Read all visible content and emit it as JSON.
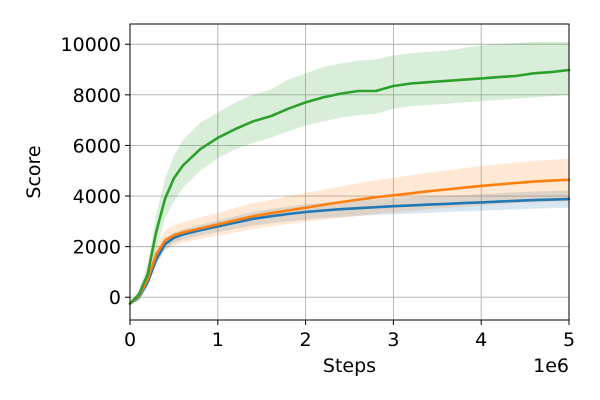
{
  "chart_data": {
    "type": "line",
    "xlabel": "Steps",
    "ylabel": "Score",
    "x_offset_label": "1e6",
    "xlim": [
      0,
      5000000
    ],
    "ylim": [
      -900,
      10800
    ],
    "x_ticks": [
      0,
      1000000,
      2000000,
      3000000,
      4000000,
      5000000
    ],
    "x_tick_labels": [
      "0",
      "1",
      "2",
      "3",
      "4",
      "5"
    ],
    "y_ticks": [
      0,
      2000,
      4000,
      6000,
      8000,
      10000
    ],
    "y_tick_labels": [
      "0",
      "2000",
      "4000",
      "6000",
      "8000",
      "10000"
    ],
    "grid": true,
    "x": [
      0,
      100000,
      200000,
      300000,
      400000,
      500000,
      600000,
      800000,
      1000000,
      1200000,
      1400000,
      1600000,
      1800000,
      2000000,
      2200000,
      2400000,
      2600000,
      2800000,
      3000000,
      3200000,
      3400000,
      3600000,
      3800000,
      4000000,
      4200000,
      4400000,
      4600000,
      4800000,
      5000000
    ],
    "series": [
      {
        "color": "#1f77b4",
        "values": [
          -250,
          0,
          600,
          1500,
          2100,
          2350,
          2480,
          2650,
          2800,
          2950,
          3100,
          3200,
          3290,
          3370,
          3430,
          3480,
          3520,
          3560,
          3600,
          3630,
          3660,
          3690,
          3720,
          3750,
          3780,
          3810,
          3840,
          3860,
          3880
        ],
        "lower": [
          -300,
          -150,
          400,
          1300,
          1900,
          2150,
          2280,
          2440,
          2570,
          2700,
          2830,
          2920,
          3000,
          3070,
          3130,
          3170,
          3210,
          3250,
          3280,
          3310,
          3340,
          3370,
          3400,
          3420,
          3450,
          3470,
          3500,
          3520,
          3540
        ],
        "upper": [
          -200,
          150,
          800,
          1700,
          2300,
          2550,
          2680,
          2860,
          3030,
          3200,
          3370,
          3480,
          3580,
          3670,
          3730,
          3790,
          3830,
          3870,
          3920,
          3950,
          3980,
          4010,
          4040,
          4080,
          4110,
          4150,
          4180,
          4200,
          4220
        ]
      },
      {
        "color": "#ff7f0e",
        "values": [
          -250,
          50,
          700,
          1700,
          2250,
          2450,
          2560,
          2720,
          2880,
          3040,
          3200,
          3320,
          3430,
          3540,
          3650,
          3760,
          3860,
          3950,
          4030,
          4110,
          4190,
          4260,
          4330,
          4400,
          4460,
          4520,
          4570,
          4610,
          4640
        ],
        "lower": [
          -300,
          -100,
          450,
          1350,
          1850,
          2050,
          2150,
          2300,
          2430,
          2560,
          2700,
          2800,
          2890,
          2980,
          3060,
          3140,
          3220,
          3290,
          3360,
          3420,
          3480,
          3530,
          3580,
          3630,
          3680,
          3720,
          3750,
          3770,
          3790
        ],
        "upper": [
          -200,
          200,
          950,
          2050,
          2650,
          2850,
          2970,
          3150,
          3340,
          3530,
          3710,
          3850,
          3990,
          4120,
          4250,
          4380,
          4500,
          4620,
          4720,
          4820,
          4920,
          5010,
          5100,
          5180,
          5260,
          5330,
          5390,
          5440,
          5480
        ]
      },
      {
        "color": "#2ca02c",
        "values": [
          -250,
          100,
          900,
          2600,
          3900,
          4700,
          5200,
          5850,
          6300,
          6650,
          6950,
          7150,
          7450,
          7700,
          7900,
          8050,
          8150,
          8150,
          8350,
          8450,
          8500,
          8550,
          8600,
          8650,
          8700,
          8750,
          8850,
          8900,
          8980
        ],
        "lower": [
          -300,
          -50,
          500,
          1900,
          3100,
          3800,
          4300,
          5000,
          5500,
          5850,
          6100,
          6300,
          6550,
          6800,
          6950,
          7100,
          7200,
          7250,
          7450,
          7550,
          7600,
          7650,
          7700,
          7750,
          7800,
          7850,
          7900,
          7950,
          8000
        ],
        "upper": [
          -200,
          250,
          1300,
          3300,
          4700,
          5600,
          6200,
          6900,
          7300,
          7700,
          8000,
          8200,
          8600,
          8850,
          9100,
          9250,
          9350,
          9400,
          9550,
          9650,
          9700,
          9750,
          9850,
          9950,
          10000,
          10050,
          10100,
          10100,
          10100
        ]
      }
    ]
  }
}
